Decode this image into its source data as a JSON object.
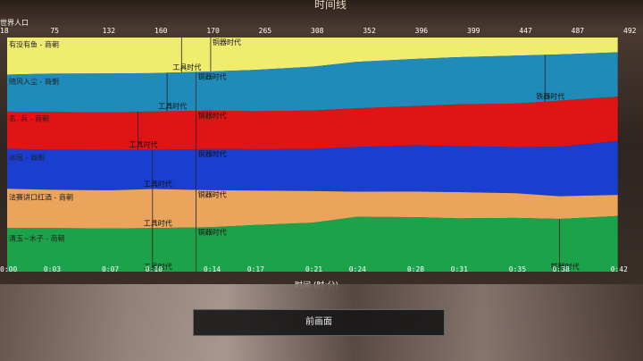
{
  "screen": {
    "title": "时间线",
    "legend_title": "世界人口",
    "axis_title": "时间 (时:分)",
    "back_button": "前画面"
  },
  "chart_data": {
    "type": "area",
    "stacked": true,
    "x": [
      "0:00",
      "0:03",
      "0:07",
      "0:10",
      "0:14",
      "0:17",
      "0:21",
      "0:24",
      "0:28",
      "0:31",
      "0:35",
      "0:38",
      "0:42"
    ],
    "x_range_minutes": [
      0,
      43
    ],
    "top_axis_ticks": [
      "18",
      "75",
      "132",
      "160",
      "170",
      "265",
      "308",
      "352",
      "396",
      "399",
      "447",
      "487",
      "492"
    ],
    "series": [
      {
        "name": "有没有鱼 - 商朝",
        "color": "#f0ec6e",
        "values": [
          0.85,
          0.83,
          0.83,
          0.82,
          0.78,
          0.75,
          0.68,
          0.58,
          0.52,
          0.48,
          0.44,
          0.41,
          0.35
        ]
      },
      {
        "name": "随风入尘 - 商朝",
        "color": "#1e8bb8",
        "values": [
          0.85,
          0.88,
          0.9,
          0.88,
          0.9,
          0.96,
          1.02,
          1.1,
          1.14,
          1.15,
          1.16,
          1.12,
          1.05
        ]
      },
      {
        "name": "名. 兵 - 商朝",
        "color": "#e01414",
        "values": [
          0.85,
          0.87,
          0.87,
          0.88,
          0.88,
          0.88,
          0.9,
          0.92,
          0.95,
          1.02,
          1.05,
          1.12,
          1.05
        ]
      },
      {
        "name": "冰瑶 - 商朝",
        "color": "#1a3fd0",
        "values": [
          0.92,
          0.92,
          0.93,
          0.9,
          0.95,
          0.96,
          0.98,
          1.06,
          1.12,
          1.12,
          1.12,
          1.2,
          1.28
        ]
      },
      {
        "name": "法赛讲口红酒 - 商朝",
        "color": "#eaa45c",
        "values": [
          0.9,
          0.88,
          0.88,
          0.9,
          0.85,
          0.8,
          0.74,
          0.6,
          0.62,
          0.64,
          0.6,
          0.55,
          0.5
        ]
      },
      {
        "name": "清玉~木子 - 商朝",
        "color": "#1ca24a",
        "values": [
          1.0,
          1.0,
          1.0,
          1.0,
          1.02,
          1.08,
          1.14,
          1.3,
          1.32,
          1.3,
          1.3,
          1.28,
          1.32
        ]
      }
    ],
    "era_markers": [
      {
        "series": 0,
        "label": "工具时代",
        "time": "0:12"
      },
      {
        "series": 0,
        "label": "铜器时代",
        "time": "0:14"
      },
      {
        "series": 1,
        "label": "工具时代",
        "time": "0:11"
      },
      {
        "series": 1,
        "label": "铜器时代",
        "time": "0:13"
      },
      {
        "series": 1,
        "label": "铁器时代",
        "time": "0:37"
      },
      {
        "series": 2,
        "label": "工具时代",
        "time": "0:09"
      },
      {
        "series": 2,
        "label": "铜器时代",
        "time": "0:13"
      },
      {
        "series": 3,
        "label": "工具时代",
        "time": "0:10"
      },
      {
        "series": 3,
        "label": "铜器时代",
        "time": "0:13"
      },
      {
        "series": 4,
        "label": "工具时代",
        "time": "0:10"
      },
      {
        "series": 4,
        "label": "铜器时代",
        "time": "0:13"
      },
      {
        "series": 5,
        "label": "工具时代",
        "time": "0:10"
      },
      {
        "series": 5,
        "label": "铜器时代",
        "time": "0:13"
      },
      {
        "series": 5,
        "label": "铁器时代",
        "time": "0:38"
      }
    ]
  }
}
